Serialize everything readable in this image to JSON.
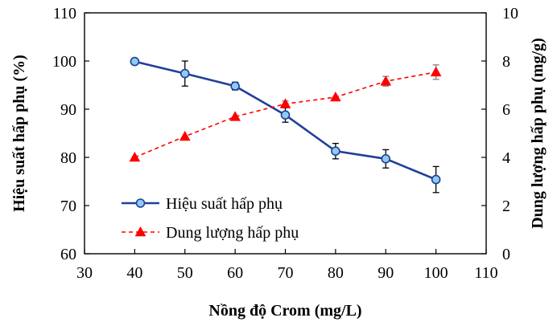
{
  "chart_data": {
    "type": "line",
    "title": "",
    "xlabel": "Nồng độ Crom (mg/L)",
    "ylabel": "Hiệu suất hấp phụ (%)",
    "y2label": "Dung lượng hấp phụ (mg/g)",
    "xlim": [
      30,
      110
    ],
    "ylim": [
      60,
      110
    ],
    "y2lim": [
      0,
      10
    ],
    "x_ticks": [
      30,
      40,
      50,
      60,
      70,
      80,
      90,
      100,
      110
    ],
    "y_ticks": [
      60,
      70,
      80,
      90,
      100,
      110
    ],
    "y2_ticks": [
      0,
      2,
      4,
      6,
      8,
      10
    ],
    "grid": false,
    "legend_position": "bottom-left",
    "series": [
      {
        "name": "Hiệu suất hấp phụ",
        "axis": "left",
        "color": "#1f3f99",
        "marker": "circle",
        "marker_color": "#8ecbf0",
        "line_style": "solid",
        "x": [
          40,
          50,
          60,
          70,
          80,
          90,
          100
        ],
        "y": [
          99.9,
          97.4,
          94.8,
          88.8,
          81.3,
          79.7,
          75.4
        ],
        "error": [
          0,
          2.6,
          0.8,
          1.5,
          1.6,
          1.9,
          2.7
        ]
      },
      {
        "name": "Dung lượng hấp phụ",
        "axis": "right",
        "color": "#ff0000",
        "marker": "triangle",
        "marker_color": "#ff0000",
        "line_style": "dashed",
        "x": [
          40,
          50,
          60,
          70,
          80,
          90,
          100
        ],
        "y": [
          4.0,
          4.87,
          5.69,
          6.22,
          6.5,
          7.16,
          7.54
        ],
        "error": [
          0,
          0,
          0,
          0.12,
          0,
          0.2,
          0.3
        ]
      }
    ]
  }
}
